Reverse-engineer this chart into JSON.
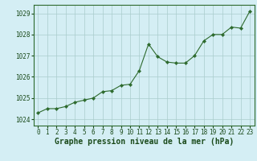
{
  "x": [
    0,
    1,
    2,
    3,
    4,
    5,
    6,
    7,
    8,
    9,
    10,
    11,
    12,
    13,
    14,
    15,
    16,
    17,
    18,
    19,
    20,
    21,
    22,
    23
  ],
  "y": [
    1024.3,
    1024.5,
    1024.5,
    1024.6,
    1024.8,
    1024.9,
    1025.0,
    1025.3,
    1025.35,
    1025.6,
    1025.65,
    1026.3,
    1027.55,
    1026.95,
    1026.7,
    1026.65,
    1026.65,
    1027.0,
    1027.7,
    1028.0,
    1028.0,
    1028.35,
    1028.3,
    1029.1
  ],
  "line_color": "#2d6a2d",
  "marker": "D",
  "marker_size": 2.2,
  "bg_color": "#d4eef4",
  "grid_color": "#aacccc",
  "xlabel": "Graphe pression niveau de la mer (hPa)",
  "xlabel_color": "#1a4a1a",
  "xlabel_fontsize": 7,
  "tick_color": "#1a4a1a",
  "tick_fontsize": 5.5,
  "yticks": [
    1024,
    1025,
    1026,
    1027,
    1028,
    1029
  ],
  "xticks": [
    0,
    1,
    2,
    3,
    4,
    5,
    6,
    7,
    8,
    9,
    10,
    11,
    12,
    13,
    14,
    15,
    16,
    17,
    18,
    19,
    20,
    21,
    22,
    23
  ],
  "ylim": [
    1023.7,
    1029.4
  ],
  "xlim": [
    -0.5,
    23.5
  ]
}
